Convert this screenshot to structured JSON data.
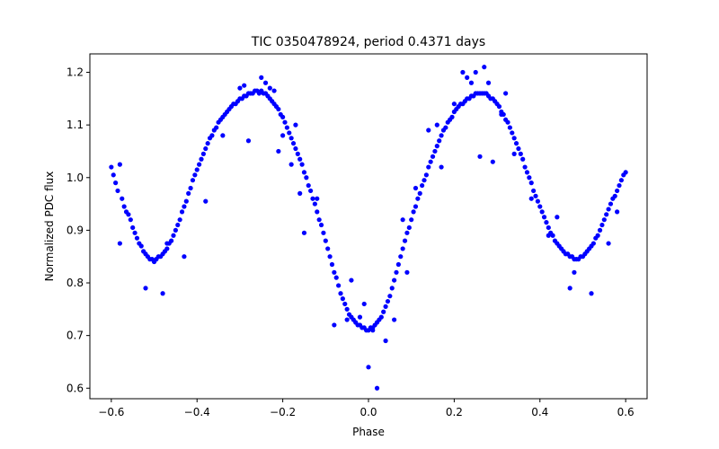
{
  "chart_data": {
    "type": "scatter",
    "title": "TIC 0350478924, period 0.4371 days",
    "xlabel": "Phase",
    "ylabel": "Normalized PDC flux",
    "xlim": [
      -0.65,
      0.65
    ],
    "ylim": [
      0.58,
      1.235
    ],
    "xticks": [
      -0.6,
      -0.4,
      -0.2,
      0.0,
      0.2,
      0.4,
      0.6
    ],
    "xtick_labels": [
      "−0.6",
      "−0.4",
      "−0.2",
      "0.0",
      "0.2",
      "0.4",
      "0.6"
    ],
    "yticks": [
      0.6,
      0.7,
      0.8,
      0.9,
      1.0,
      1.1,
      1.2
    ],
    "ytick_labels": [
      "0.6",
      "0.7",
      "0.8",
      "0.9",
      "1.0",
      "1.1",
      "1.2"
    ],
    "grid": false,
    "legend": "none",
    "series": [
      {
        "color": "#0000ff",
        "points": [
          [
            -0.6,
            1.02
          ],
          [
            -0.595,
            1.005
          ],
          [
            -0.59,
            0.99
          ],
          [
            -0.585,
            0.975
          ],
          [
            -0.58,
            1.025
          ],
          [
            -0.575,
            0.96
          ],
          [
            -0.57,
            0.945
          ],
          [
            -0.565,
            0.935
          ],
          [
            -0.56,
            0.93
          ],
          [
            -0.555,
            0.92
          ],
          [
            -0.55,
            0.905
          ],
          [
            -0.545,
            0.895
          ],
          [
            -0.54,
            0.885
          ],
          [
            -0.535,
            0.875
          ],
          [
            -0.53,
            0.87
          ],
          [
            -0.525,
            0.86
          ],
          [
            -0.52,
            0.855
          ],
          [
            -0.515,
            0.85
          ],
          [
            -0.51,
            0.845
          ],
          [
            -0.505,
            0.845
          ],
          [
            -0.5,
            0.84
          ],
          [
            -0.495,
            0.845
          ],
          [
            -0.49,
            0.85
          ],
          [
            -0.485,
            0.85
          ],
          [
            -0.48,
            0.855
          ],
          [
            -0.475,
            0.86
          ],
          [
            -0.47,
            0.865
          ],
          [
            -0.465,
            0.875
          ],
          [
            -0.46,
            0.88
          ],
          [
            -0.455,
            0.89
          ],
          [
            -0.45,
            0.9
          ],
          [
            -0.445,
            0.91
          ],
          [
            -0.44,
            0.92
          ],
          [
            -0.435,
            0.935
          ],
          [
            -0.43,
            0.945
          ],
          [
            -0.425,
            0.955
          ],
          [
            -0.42,
            0.97
          ],
          [
            -0.415,
            0.98
          ],
          [
            -0.41,
            0.995
          ],
          [
            -0.405,
            1.005
          ],
          [
            -0.4,
            1.015
          ],
          [
            -0.395,
            1.025
          ],
          [
            -0.39,
            1.035
          ],
          [
            -0.385,
            1.045
          ],
          [
            -0.38,
            1.055
          ],
          [
            -0.375,
            1.065
          ],
          [
            -0.37,
            1.075
          ],
          [
            -0.365,
            1.08
          ],
          [
            -0.36,
            1.09
          ],
          [
            -0.355,
            1.095
          ],
          [
            -0.35,
            1.105
          ],
          [
            -0.345,
            1.11
          ],
          [
            -0.34,
            1.115
          ],
          [
            -0.335,
            1.12
          ],
          [
            -0.33,
            1.125
          ],
          [
            -0.325,
            1.13
          ],
          [
            -0.32,
            1.135
          ],
          [
            -0.315,
            1.14
          ],
          [
            -0.31,
            1.14
          ],
          [
            -0.305,
            1.145
          ],
          [
            -0.3,
            1.15
          ],
          [
            -0.295,
            1.15
          ],
          [
            -0.29,
            1.155
          ],
          [
            -0.285,
            1.155
          ],
          [
            -0.28,
            1.16
          ],
          [
            -0.275,
            1.16
          ],
          [
            -0.27,
            1.16
          ],
          [
            -0.265,
            1.165
          ],
          [
            -0.26,
            1.165
          ],
          [
            -0.255,
            1.16
          ],
          [
            -0.25,
            1.165
          ],
          [
            -0.245,
            1.16
          ],
          [
            -0.24,
            1.16
          ],
          [
            -0.235,
            1.155
          ],
          [
            -0.23,
            1.15
          ],
          [
            -0.225,
            1.145
          ],
          [
            -0.22,
            1.14
          ],
          [
            -0.215,
            1.135
          ],
          [
            -0.21,
            1.13
          ],
          [
            -0.205,
            1.12
          ],
          [
            -0.2,
            1.115
          ],
          [
            -0.195,
            1.105
          ],
          [
            -0.19,
            1.095
          ],
          [
            -0.185,
            1.085
          ],
          [
            -0.18,
            1.075
          ],
          [
            -0.175,
            1.065
          ],
          [
            -0.17,
            1.055
          ],
          [
            -0.165,
            1.045
          ],
          [
            -0.16,
            1.035
          ],
          [
            -0.155,
            1.025
          ],
          [
            -0.15,
            1.01
          ],
          [
            -0.145,
            1.0
          ],
          [
            -0.14,
            0.985
          ],
          [
            -0.135,
            0.975
          ],
          [
            -0.13,
            0.96
          ],
          [
            -0.125,
            0.95
          ],
          [
            -0.12,
            0.935
          ],
          [
            -0.115,
            0.92
          ],
          [
            -0.11,
            0.91
          ],
          [
            -0.105,
            0.895
          ],
          [
            -0.1,
            0.88
          ],
          [
            -0.095,
            0.865
          ],
          [
            -0.09,
            0.85
          ],
          [
            -0.085,
            0.835
          ],
          [
            -0.08,
            0.82
          ],
          [
            -0.075,
            0.81
          ],
          [
            -0.07,
            0.795
          ],
          [
            -0.065,
            0.78
          ],
          [
            -0.06,
            0.77
          ],
          [
            -0.055,
            0.76
          ],
          [
            -0.05,
            0.75
          ],
          [
            -0.045,
            0.74
          ],
          [
            -0.04,
            0.735
          ],
          [
            -0.035,
            0.73
          ],
          [
            -0.03,
            0.725
          ],
          [
            -0.025,
            0.72
          ],
          [
            -0.02,
            0.72
          ],
          [
            -0.015,
            0.715
          ],
          [
            -0.01,
            0.715
          ],
          [
            -0.005,
            0.71
          ],
          [
            0.0,
            0.71
          ],
          [
            0.005,
            0.715
          ],
          [
            0.01,
            0.715
          ],
          [
            0.015,
            0.72
          ],
          [
            0.02,
            0.725
          ],
          [
            0.025,
            0.73
          ],
          [
            0.03,
            0.735
          ],
          [
            0.035,
            0.745
          ],
          [
            0.04,
            0.755
          ],
          [
            0.045,
            0.765
          ],
          [
            0.05,
            0.775
          ],
          [
            0.055,
            0.79
          ],
          [
            0.06,
            0.805
          ],
          [
            0.065,
            0.82
          ],
          [
            0.07,
            0.835
          ],
          [
            0.075,
            0.85
          ],
          [
            0.08,
            0.865
          ],
          [
            0.085,
            0.88
          ],
          [
            0.09,
            0.895
          ],
          [
            0.095,
            0.905
          ],
          [
            0.1,
            0.92
          ],
          [
            0.105,
            0.935
          ],
          [
            0.11,
            0.945
          ],
          [
            0.115,
            0.96
          ],
          [
            0.12,
            0.97
          ],
          [
            0.125,
            0.985
          ],
          [
            0.13,
            0.995
          ],
          [
            0.135,
            1.005
          ],
          [
            0.14,
            1.02
          ],
          [
            0.145,
            1.03
          ],
          [
            0.15,
            1.04
          ],
          [
            0.155,
            1.05
          ],
          [
            0.16,
            1.06
          ],
          [
            0.165,
            1.07
          ],
          [
            0.17,
            1.08
          ],
          [
            0.175,
            1.09
          ],
          [
            0.18,
            1.095
          ],
          [
            0.185,
            1.105
          ],
          [
            0.19,
            1.11
          ],
          [
            0.195,
            1.115
          ],
          [
            0.2,
            1.125
          ],
          [
            0.205,
            1.13
          ],
          [
            0.21,
            1.135
          ],
          [
            0.215,
            1.14
          ],
          [
            0.22,
            1.14
          ],
          [
            0.225,
            1.145
          ],
          [
            0.23,
            1.15
          ],
          [
            0.235,
            1.15
          ],
          [
            0.24,
            1.155
          ],
          [
            0.245,
            1.155
          ],
          [
            0.25,
            1.16
          ],
          [
            0.255,
            1.16
          ],
          [
            0.26,
            1.16
          ],
          [
            0.265,
            1.16
          ],
          [
            0.27,
            1.16
          ],
          [
            0.275,
            1.16
          ],
          [
            0.28,
            1.155
          ],
          [
            0.285,
            1.15
          ],
          [
            0.29,
            1.15
          ],
          [
            0.295,
            1.145
          ],
          [
            0.3,
            1.14
          ],
          [
            0.305,
            1.135
          ],
          [
            0.31,
            1.125
          ],
          [
            0.315,
            1.12
          ],
          [
            0.32,
            1.11
          ],
          [
            0.325,
            1.105
          ],
          [
            0.33,
            1.095
          ],
          [
            0.335,
            1.085
          ],
          [
            0.34,
            1.075
          ],
          [
            0.345,
            1.065
          ],
          [
            0.35,
            1.055
          ],
          [
            0.355,
            1.045
          ],
          [
            0.36,
            1.035
          ],
          [
            0.365,
            1.02
          ],
          [
            0.37,
            1.01
          ],
          [
            0.375,
            1.0
          ],
          [
            0.38,
            0.99
          ],
          [
            0.385,
            0.975
          ],
          [
            0.39,
            0.965
          ],
          [
            0.395,
            0.955
          ],
          [
            0.4,
            0.945
          ],
          [
            0.405,
            0.935
          ],
          [
            0.41,
            0.925
          ],
          [
            0.415,
            0.915
          ],
          [
            0.42,
            0.905
          ],
          [
            0.425,
            0.895
          ],
          [
            0.43,
            0.89
          ],
          [
            0.435,
            0.88
          ],
          [
            0.44,
            0.875
          ],
          [
            0.445,
            0.87
          ],
          [
            0.45,
            0.865
          ],
          [
            0.455,
            0.86
          ],
          [
            0.46,
            0.855
          ],
          [
            0.465,
            0.855
          ],
          [
            0.47,
            0.85
          ],
          [
            0.475,
            0.85
          ],
          [
            0.48,
            0.845
          ],
          [
            0.485,
            0.845
          ],
          [
            0.49,
            0.845
          ],
          [
            0.495,
            0.85
          ],
          [
            0.5,
            0.85
          ],
          [
            0.505,
            0.855
          ],
          [
            0.51,
            0.86
          ],
          [
            0.515,
            0.865
          ],
          [
            0.52,
            0.87
          ],
          [
            0.525,
            0.875
          ],
          [
            0.53,
            0.885
          ],
          [
            0.535,
            0.89
          ],
          [
            0.54,
            0.9
          ],
          [
            0.545,
            0.91
          ],
          [
            0.55,
            0.92
          ],
          [
            0.555,
            0.93
          ],
          [
            0.56,
            0.94
          ],
          [
            0.565,
            0.95
          ],
          [
            0.57,
            0.96
          ],
          [
            0.575,
            0.965
          ],
          [
            0.58,
            0.975
          ],
          [
            0.585,
            0.985
          ],
          [
            0.59,
            0.995
          ],
          [
            0.595,
            1.005
          ],
          [
            0.6,
            1.01
          ],
          [
            -0.58,
            0.875
          ],
          [
            -0.52,
            0.79
          ],
          [
            -0.48,
            0.78
          ],
          [
            -0.47,
            0.875
          ],
          [
            -0.43,
            0.85
          ],
          [
            -0.38,
            0.955
          ],
          [
            -0.34,
            1.08
          ],
          [
            -0.3,
            1.17
          ],
          [
            -0.29,
            1.175
          ],
          [
            -0.28,
            1.07
          ],
          [
            -0.25,
            1.19
          ],
          [
            -0.24,
            1.18
          ],
          [
            -0.23,
            1.17
          ],
          [
            -0.22,
            1.165
          ],
          [
            -0.21,
            1.05
          ],
          [
            -0.2,
            1.08
          ],
          [
            -0.18,
            1.025
          ],
          [
            -0.17,
            1.1
          ],
          [
            -0.16,
            0.97
          ],
          [
            -0.15,
            0.895
          ],
          [
            -0.12,
            0.96
          ],
          [
            -0.08,
            0.72
          ],
          [
            -0.05,
            0.73
          ],
          [
            -0.04,
            0.805
          ],
          [
            -0.02,
            0.735
          ],
          [
            -0.01,
            0.76
          ],
          [
            0.0,
            0.64
          ],
          [
            0.01,
            0.71
          ],
          [
            0.02,
            0.6
          ],
          [
            0.04,
            0.69
          ],
          [
            0.06,
            0.73
          ],
          [
            0.08,
            0.92
          ],
          [
            0.09,
            0.82
          ],
          [
            0.11,
            0.98
          ],
          [
            0.14,
            1.09
          ],
          [
            0.16,
            1.1
          ],
          [
            0.17,
            1.02
          ],
          [
            0.2,
            1.14
          ],
          [
            0.22,
            1.2
          ],
          [
            0.23,
            1.19
          ],
          [
            0.24,
            1.18
          ],
          [
            0.25,
            1.2
          ],
          [
            0.26,
            1.04
          ],
          [
            0.27,
            1.21
          ],
          [
            0.28,
            1.18
          ],
          [
            0.29,
            1.03
          ],
          [
            0.31,
            1.12
          ],
          [
            0.32,
            1.16
          ],
          [
            0.34,
            1.045
          ],
          [
            0.38,
            0.96
          ],
          [
            0.42,
            0.89
          ],
          [
            0.44,
            0.925
          ],
          [
            0.47,
            0.79
          ],
          [
            0.48,
            0.82
          ],
          [
            0.52,
            0.78
          ],
          [
            0.56,
            0.875
          ],
          [
            0.58,
            0.935
          ]
        ]
      }
    ]
  }
}
